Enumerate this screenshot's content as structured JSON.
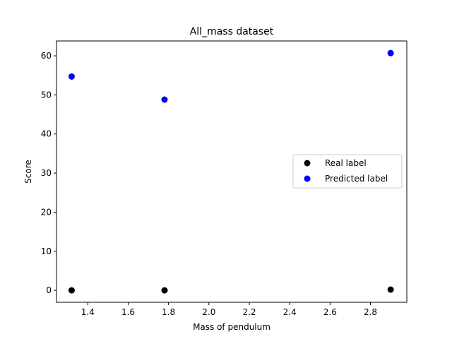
{
  "chart_data": {
    "type": "scatter",
    "title": "All_mass dataset",
    "xlabel": "Mass of pendulum",
    "ylabel": "Score",
    "xlim": [
      1.245,
      2.98
    ],
    "ylim": [
      -3.05,
      63.8
    ],
    "xticks": [
      1.4,
      1.6,
      1.8,
      2.0,
      2.2,
      2.4,
      2.6,
      2.8
    ],
    "xtick_labels": [
      "1.4",
      "1.6",
      "1.8",
      "2.0",
      "2.2",
      "2.4",
      "2.6",
      "2.8"
    ],
    "yticks": [
      0,
      10,
      20,
      30,
      40,
      50,
      60
    ],
    "ytick_labels": [
      "0",
      "10",
      "20",
      "30",
      "40",
      "50",
      "60"
    ],
    "grid": false,
    "legend_position": "center-right",
    "series": [
      {
        "name": "Real label",
        "color": "#000000",
        "x": [
          1.32,
          1.78,
          2.9
        ],
        "y": [
          0,
          0,
          0.2
        ]
      },
      {
        "name": "Predicted label",
        "color": "#0000ff",
        "x": [
          1.32,
          1.78,
          2.9
        ],
        "y": [
          54.7,
          48.8,
          60.7
        ]
      }
    ]
  }
}
